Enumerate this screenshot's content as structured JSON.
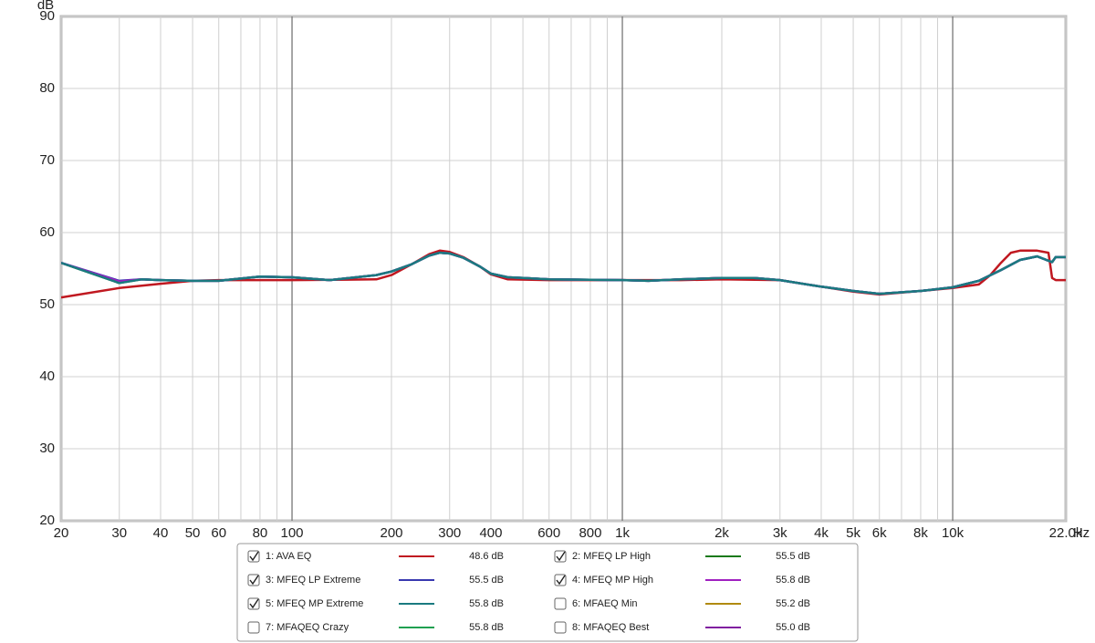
{
  "chart_data": {
    "type": "line",
    "y_label": "dB",
    "x_label": "Hz",
    "log_x": true,
    "grid": true,
    "xlim": [
      20,
      22000
    ],
    "ylim": [
      20,
      90
    ],
    "yticks": [
      20,
      30,
      40,
      50,
      60,
      70,
      80,
      90
    ],
    "xticks": [
      20,
      30,
      40,
      50,
      60,
      80,
      100,
      200,
      300,
      400,
      600,
      800,
      {
        "value": 1000,
        "label": "1k"
      },
      {
        "value": 2000,
        "label": "2k"
      },
      {
        "value": 3000,
        "label": "3k"
      },
      {
        "value": 4000,
        "label": "4k"
      },
      {
        "value": 5000,
        "label": "5k"
      },
      {
        "value": 6000,
        "label": "6k"
      },
      {
        "value": 8000,
        "label": "8k"
      },
      {
        "value": 10000,
        "label": "10k"
      },
      {
        "value": 22000,
        "label": "22.0k"
      }
    ],
    "x_minor_gridlines": [
      70,
      90,
      500,
      700,
      900,
      7000,
      9000
    ],
    "series": [
      {
        "name": "1: AVA EQ",
        "color": "#c01820",
        "checked": true,
        "readout": 48.6,
        "readout_label": "48.6 dB",
        "x": [
          20,
          30,
          40,
          50,
          60,
          100,
          180,
          200,
          230,
          260,
          280,
          300,
          330,
          370,
          400,
          450,
          600,
          1000,
          1500,
          2000,
          3000,
          4000,
          5000,
          6000,
          8000,
          10000,
          12000,
          13000,
          14000,
          15000,
          16000,
          18000,
          19500,
          20000,
          20500,
          22000
        ],
        "values": [
          51.0,
          52.3,
          52.9,
          53.3,
          53.4,
          53.4,
          53.5,
          54.1,
          55.6,
          57.0,
          57.5,
          57.3,
          56.6,
          55.3,
          54.2,
          53.5,
          53.4,
          53.4,
          53.4,
          53.5,
          53.4,
          52.5,
          51.8,
          51.4,
          51.9,
          52.3,
          52.8,
          54.1,
          55.8,
          57.2,
          57.5,
          57.5,
          57.2,
          53.7,
          53.4,
          53.4
        ]
      },
      {
        "name": "2: MFEQ LP High",
        "color": "#1a7a1a",
        "checked": true,
        "readout": 55.5,
        "readout_label": "55.5 dB",
        "x": [
          20,
          30,
          35,
          40,
          50,
          60,
          80,
          100,
          130,
          180,
          200,
          230,
          260,
          280,
          300,
          330,
          370,
          400,
          450,
          500,
          600,
          1000,
          1200,
          1500,
          2000,
          2500,
          3000,
          4000,
          5000,
          6000,
          8000,
          10000,
          12000,
          14000,
          16000,
          18000,
          20000,
          20500,
          22000
        ],
        "values": [
          55.8,
          53.0,
          53.5,
          53.4,
          53.3,
          53.3,
          53.9,
          53.8,
          53.4,
          54.1,
          54.6,
          55.6,
          56.8,
          57.2,
          57.1,
          56.5,
          55.3,
          54.3,
          53.8,
          53.7,
          53.5,
          53.4,
          53.3,
          53.5,
          53.7,
          53.7,
          53.4,
          52.5,
          51.9,
          51.5,
          51.9,
          52.4,
          53.3,
          54.8,
          56.2,
          56.7,
          55.9,
          56.6,
          56.6
        ]
      },
      {
        "name": "3: MFEQ LP Extreme",
        "color": "#3838b0",
        "checked": true,
        "readout": 55.5,
        "readout_label": "55.5 dB",
        "x": [
          20,
          30,
          35,
          40,
          50,
          60,
          80,
          100,
          130,
          180,
          200,
          230,
          260,
          280,
          300,
          330,
          370,
          400,
          450,
          500,
          600,
          1000,
          1200,
          1500,
          2000,
          2500,
          3000,
          4000,
          5000,
          6000,
          8000,
          10000,
          12000,
          14000,
          16000,
          18000,
          20000,
          20500,
          22000
        ],
        "values": [
          55.8,
          53.3,
          53.5,
          53.4,
          53.3,
          53.3,
          53.9,
          53.8,
          53.4,
          54.1,
          54.6,
          55.6,
          56.8,
          57.2,
          57.1,
          56.5,
          55.3,
          54.3,
          53.8,
          53.7,
          53.5,
          53.4,
          53.3,
          53.5,
          53.7,
          53.7,
          53.4,
          52.5,
          51.9,
          51.5,
          51.9,
          52.4,
          53.3,
          54.8,
          56.2,
          56.7,
          55.9,
          56.6,
          56.6
        ]
      },
      {
        "name": "4: MFEQ MP High",
        "color": "#a020c0",
        "checked": true,
        "readout": 55.8,
        "readout_label": "55.8 dB",
        "x": [
          20,
          30,
          35,
          40,
          50,
          60,
          80,
          100,
          130,
          180,
          200,
          230,
          260,
          280,
          300,
          330,
          370,
          400,
          450,
          500,
          600,
          1000,
          1200,
          1500,
          2000,
          2500,
          3000,
          4000,
          5000,
          6000,
          8000,
          10000,
          12000,
          14000,
          16000,
          18000,
          20000,
          20500,
          22000
        ],
        "values": [
          55.8,
          53.2,
          53.5,
          53.4,
          53.3,
          53.3,
          53.9,
          53.8,
          53.4,
          54.1,
          54.6,
          55.6,
          56.8,
          57.2,
          57.1,
          56.5,
          55.3,
          54.3,
          53.8,
          53.7,
          53.5,
          53.4,
          53.3,
          53.5,
          53.7,
          53.7,
          53.4,
          52.5,
          51.9,
          51.5,
          51.9,
          52.4,
          53.3,
          54.8,
          56.2,
          56.7,
          55.9,
          56.6,
          56.6
        ]
      },
      {
        "name": "5: MFEQ MP Extreme",
        "color": "#1a7a80",
        "checked": true,
        "readout": 55.8,
        "readout_label": "55.8 dB",
        "x": [
          20,
          30,
          35,
          40,
          50,
          60,
          80,
          100,
          130,
          180,
          200,
          230,
          260,
          280,
          300,
          330,
          370,
          400,
          450,
          500,
          600,
          1000,
          1200,
          1500,
          2000,
          2500,
          3000,
          4000,
          5000,
          6000,
          8000,
          10000,
          12000,
          14000,
          16000,
          18000,
          20000,
          20500,
          22000
        ],
        "values": [
          55.8,
          53.0,
          53.5,
          53.4,
          53.3,
          53.3,
          53.9,
          53.8,
          53.4,
          54.1,
          54.6,
          55.6,
          56.8,
          57.2,
          57.1,
          56.5,
          55.3,
          54.3,
          53.8,
          53.7,
          53.5,
          53.4,
          53.3,
          53.5,
          53.7,
          53.7,
          53.4,
          52.5,
          51.9,
          51.5,
          51.9,
          52.4,
          53.3,
          54.8,
          56.2,
          56.7,
          55.9,
          56.6,
          56.6
        ]
      },
      {
        "name": "6: MFAEQ Min",
        "color": "#b08a10",
        "checked": false,
        "readout": 55.2,
        "readout_label": "55.2 dB"
      },
      {
        "name": "7: MFAQEQ Crazy",
        "color": "#20a050",
        "checked": false,
        "readout": 55.8,
        "readout_label": "55.8 dB"
      },
      {
        "name": "8: MFAQEQ Best",
        "color": "#8020a0",
        "checked": false,
        "readout": 55.0,
        "readout_label": "55.0 dB"
      }
    ]
  }
}
